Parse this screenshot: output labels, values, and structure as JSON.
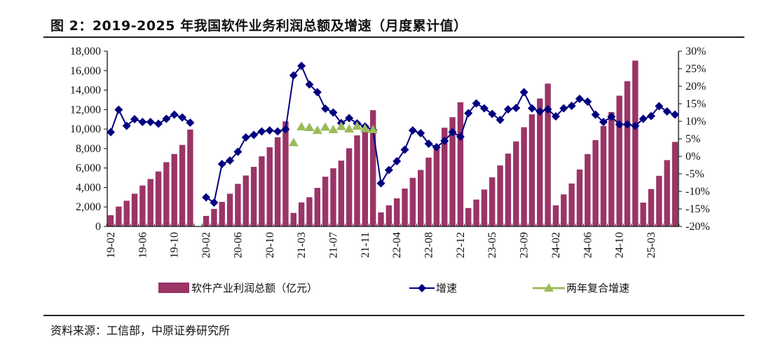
{
  "title": "图 2：2019-2025 年我国软件业务利润总额及增速（月度累计值）",
  "source": "资料来源：工信部，中原证券研究所",
  "colors": {
    "bar": "#9B3467",
    "growth": "#000080",
    "two_year": "#9BBB59"
  },
  "chart_data": {
    "type": "bar+line",
    "title": "2019-2025 年我国软件业务利润总额及增速（月度累计值）",
    "categories": [
      "19-02",
      "19-03",
      "19-04",
      "19-05",
      "19-06",
      "19-07",
      "19-08",
      "19-09",
      "19-10",
      "19-11",
      "19-12",
      "20-01",
      "20-02",
      "20-03",
      "20-04",
      "20-05",
      "20-06",
      "20-07",
      "20-08",
      "20-09",
      "20-10",
      "20-11",
      "20-12",
      "21-02",
      "21-03",
      "21-04",
      "21-05",
      "21-06",
      "21-07",
      "21-08",
      "21-09",
      "21-10",
      "21-11",
      "21-12",
      "22-02",
      "22-03",
      "22-04",
      "22-05",
      "22-06",
      "22-07",
      "22-08",
      "22-09",
      "22-10",
      "22-11",
      "22-12",
      "23-02",
      "23-03",
      "23-04",
      "23-05",
      "23-06",
      "23-07",
      "23-08",
      "23-09",
      "23-10",
      "23-11",
      "23-12",
      "24-02",
      "24-03",
      "24-04",
      "24-05",
      "24-06",
      "24-07",
      "24-08",
      "24-09",
      "24-10",
      "24-11",
      "24-12",
      "25-02",
      "25-03",
      "25-04",
      "25-05",
      "25-06"
    ],
    "x_tick_labels": [
      "19-02",
      "19-06",
      "19-10",
      "20-02",
      "20-06",
      "20-10",
      "21-03",
      "21-07",
      "21-11",
      "22-04",
      "22-08",
      "22-12",
      "23-05",
      "23-09",
      "24-02",
      "24-06",
      "24-10",
      "25-03"
    ],
    "series": [
      {
        "name": "软件产业利润总额（亿元）",
        "type": "bar",
        "axis": "left",
        "values": [
          1150,
          2040,
          2640,
          3360,
          4200,
          4870,
          5640,
          6600,
          7440,
          8370,
          9950,
          null,
          1080,
          1800,
          2520,
          3360,
          4370,
          5230,
          6120,
          7200,
          8130,
          9160,
          10790,
          1390,
          2470,
          3000,
          3960,
          5110,
          5970,
          6760,
          8030,
          9350,
          10300,
          11940,
          1440,
          2160,
          2880,
          3890,
          4990,
          5800,
          7070,
          8030,
          10140,
          11220,
          12750,
          1890,
          2760,
          3790,
          5040,
          6260,
          7480,
          8730,
          10190,
          11510,
          13140,
          14670,
          2160,
          3290,
          4410,
          5850,
          7430,
          8870,
          10310,
          11750,
          13430,
          14920,
          17030,
          2450,
          3840,
          5200,
          6810,
          8680
        ]
      },
      {
        "name": "增速",
        "type": "line",
        "axis": "right",
        "unit": "%",
        "values": [
          6.9,
          13.3,
          8.7,
          10.6,
          9.8,
          9.8,
          9.3,
          10.7,
          11.9,
          11.1,
          9.6,
          null,
          -11.7,
          -13.2,
          -2.2,
          -1.2,
          1.3,
          5.4,
          6.1,
          7.1,
          7.4,
          7.1,
          7.7,
          23.1,
          25.8,
          20.5,
          18.3,
          13.6,
          12.5,
          9.5,
          10.9,
          9.4,
          8.5,
          7.5,
          -7.7,
          -3.9,
          -1.4,
          1.9,
          7.4,
          6.6,
          3.6,
          2.6,
          4.4,
          6.9,
          5.6,
          12.3,
          15.1,
          13.7,
          12.1,
          10.4,
          13.4,
          13.8,
          18.3,
          13.7,
          12.8,
          13.4,
          11.4,
          13.7,
          14.4,
          16.4,
          15.6,
          11.9,
          9.8,
          11.3,
          9.1,
          9.1,
          8.7,
          10.7,
          11.5,
          14.3,
          12.8,
          11.9
        ]
      },
      {
        "name": "两年复合增速",
        "type": "line",
        "axis": "right",
        "unit": "%",
        "values": [
          null,
          null,
          null,
          null,
          null,
          null,
          null,
          null,
          null,
          null,
          null,
          null,
          null,
          null,
          null,
          null,
          null,
          null,
          null,
          null,
          null,
          null,
          null,
          3.9,
          8.4,
          8.2,
          7.4,
          8.3,
          7.6,
          8.5,
          7.8,
          8.6,
          7.9,
          7.6,
          null,
          null,
          null,
          null,
          null,
          null,
          null,
          null,
          null,
          null,
          null,
          null,
          null,
          null,
          null,
          null,
          null,
          null,
          null,
          null,
          null,
          null,
          null,
          null,
          null,
          null,
          null,
          null,
          null,
          null,
          null,
          null,
          null,
          null,
          null,
          null,
          null,
          null
        ]
      }
    ],
    "left_axis": {
      "min": 0,
      "max": 18000,
      "step": 2000,
      "tick_labels": [
        "0",
        "2,000",
        "4,000",
        "6,000",
        "8,000",
        "10,000",
        "12,000",
        "14,000",
        "16,000",
        "18,000"
      ]
    },
    "right_axis": {
      "min": -20,
      "max": 30,
      "step": 5,
      "tick_labels": [
        "-20%",
        "-15%",
        "-10%",
        "-5%",
        "0%",
        "5%",
        "10%",
        "15%",
        "20%",
        "25%",
        "30%"
      ]
    },
    "legend": {
      "position": "bottom",
      "items": [
        "软件产业利润总额（亿元）",
        "增速",
        "两年复合增速"
      ]
    },
    "grid": false
  }
}
